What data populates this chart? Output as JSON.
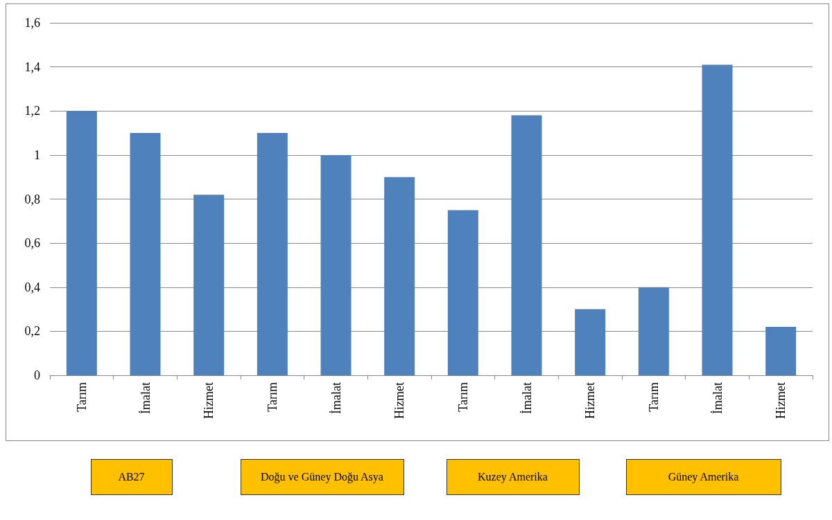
{
  "chart_data": {
    "type": "bar",
    "categories": [
      "Tarım",
      "İmalat",
      "Hizmet",
      "Tarım",
      "İmalat",
      "Hizmet",
      "Tarım",
      "İmalat",
      "Hizmet",
      "Tarım",
      "İmalat",
      "Hizmet"
    ],
    "values": [
      1.2,
      1.1,
      0.82,
      1.1,
      1.0,
      0.9,
      0.75,
      1.18,
      0.3,
      0.4,
      1.41,
      0.22
    ],
    "color": "#4f81bd",
    "ylim": [
      0,
      1.6
    ],
    "yticks": [
      0,
      {
        "value": 0.2,
        "label": "0,2"
      },
      {
        "value": 0.4,
        "label": "0,4"
      },
      {
        "value": 0.6,
        "label": "0,6"
      },
      {
        "value": 0.8,
        "label": "0,8"
      },
      1,
      {
        "value": 1.2,
        "label": "1,2"
      },
      {
        "value": 1.4,
        "label": "1,4"
      },
      {
        "value": 1.6,
        "label": "1,6"
      }
    ],
    "grid": "y",
    "annotations": [
      "AB27",
      "Doğu ve Güney Doğu Asya",
      "Kuzey Amerika",
      "Güney Amerika"
    ]
  }
}
